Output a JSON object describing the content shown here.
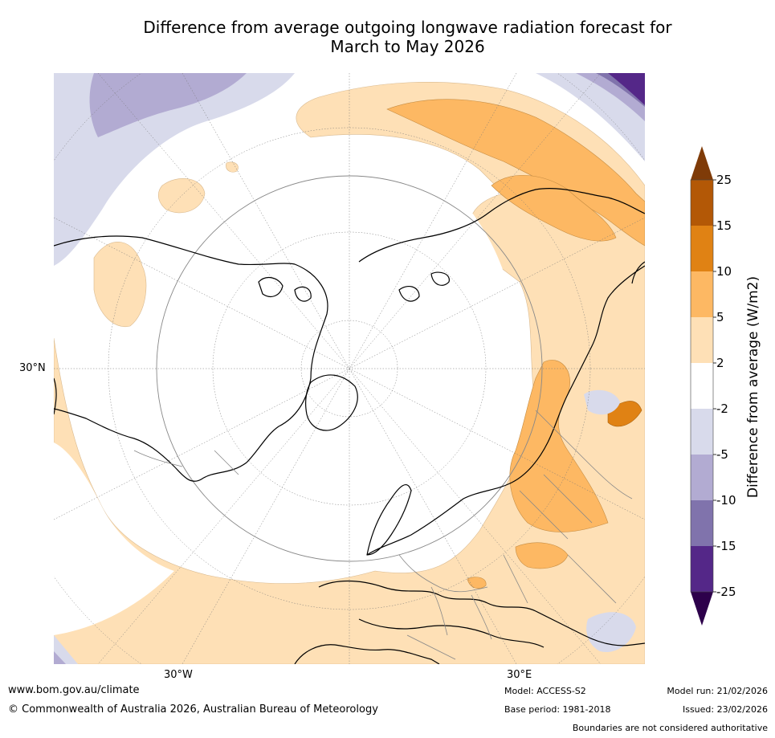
{
  "title_line1": "Difference from average outgoing longwave radiation forecast for",
  "title_line2": "March to May 2026",
  "lat_label": "30°N",
  "lon_label_left": "30°W",
  "lon_label_right": "30°E",
  "colorbar": {
    "label": "Difference from average (W/m2)",
    "ticks": [
      "25",
      "15",
      "10",
      "5",
      "2",
      "-2",
      "-5",
      "-10",
      "-15",
      "-25"
    ],
    "colors": {
      "gt25": "#7f3b08",
      "c15_25": "#b35806",
      "c10_15": "#e08214",
      "c5_10": "#fdb863",
      "c2_5": "#fee0b6",
      "neutral": "#ffffff",
      "cm2_m5": "#d8daeb",
      "cm5_m10": "#b2abd2",
      "cm10_m15": "#8073ac",
      "cm15_m25": "#542788",
      "ltm25": "#2d004b"
    }
  },
  "footer": {
    "website": "www.bom.gov.au/climate",
    "copyright": "© Commonwealth of Australia 2026, Australian Bureau of Meteorology",
    "model": "Model: ACCESS-S2",
    "base_period": "Base period: 1981-2018",
    "model_run": "Model run: 21/02/2026",
    "issued": "Issued: 23/02/2026",
    "disclaimer": "Boundaries are not considered authoritative"
  }
}
